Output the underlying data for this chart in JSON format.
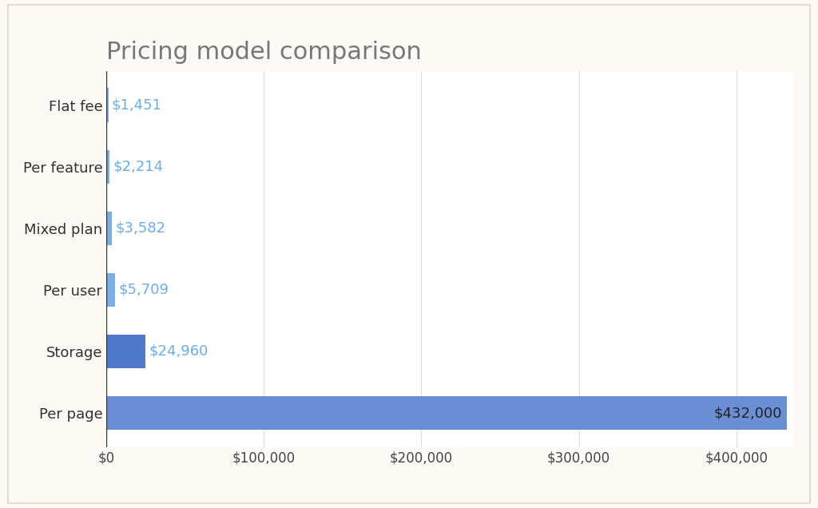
{
  "title": "Pricing model comparison",
  "categories": [
    "Per page",
    "Storage",
    "Per user",
    "Mixed plan",
    "Per feature",
    "Flat fee"
  ],
  "values": [
    432000,
    24960,
    5709,
    3582,
    2214,
    1451
  ],
  "labels": [
    "$432,000",
    "$24,960",
    "$5,709",
    "$3,582",
    "$2,214",
    "$1,451"
  ],
  "bar_colors": [
    "#6B8FD4",
    "#4F78C8",
    "#7AAEE8",
    "#7AAEE8",
    "#7AAEE8",
    "#7AAEE8"
  ],
  "label_color_large": "#222222",
  "label_color_small": "#6AADEE",
  "xlim_max": 432000,
  "xticks": [
    0,
    100000,
    200000,
    300000,
    400000
  ],
  "xticklabels": [
    "$0",
    "$100,000",
    "$200,000",
    "$300,000",
    "$400,000"
  ],
  "plot_bg": "#FFFFFF",
  "outer_bg": "#FDFAF5",
  "grid_color": "#DDDDDD",
  "title_fontsize": 22,
  "label_fontsize": 13,
  "tick_fontsize": 12,
  "bar_height": 0.55
}
